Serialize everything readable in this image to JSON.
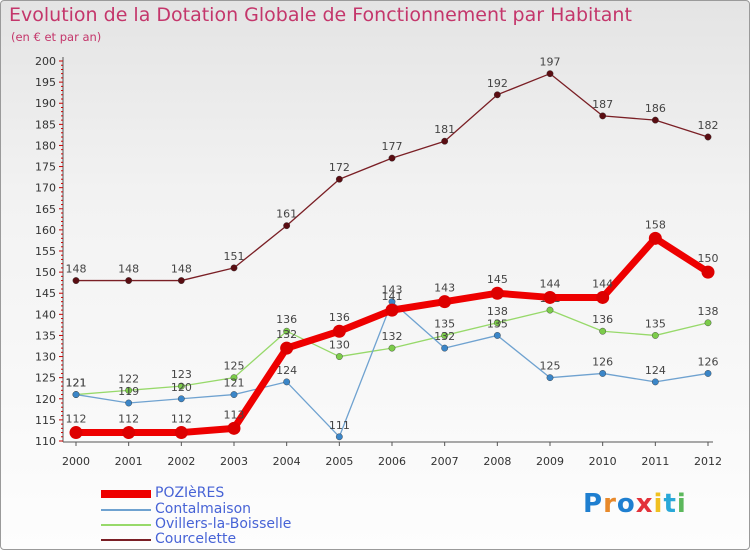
{
  "chart_data": {
    "type": "line",
    "title": "Evolution de la Dotation Globale de Fonctionnement par Habitant",
    "subtitle": "(en € et par an)",
    "xlabel": "",
    "ylabel": "",
    "x": [
      "2000",
      "2001",
      "2002",
      "2003",
      "2004",
      "2005",
      "2006",
      "2007",
      "2008",
      "2009",
      "2010",
      "2011",
      "2012"
    ],
    "ylim": [
      110,
      200
    ],
    "yticks": [
      110,
      115,
      120,
      125,
      130,
      135,
      140,
      145,
      150,
      155,
      160,
      165,
      170,
      175,
      180,
      185,
      190,
      195,
      200
    ],
    "grid": false,
    "legend_position": "bottom-left",
    "series": [
      {
        "name": "Courcelette",
        "color": "#7a1f25",
        "marker": "#5a0d12",
        "values": [
          148,
          148,
          148,
          151,
          161,
          172,
          177,
          181,
          192,
          197,
          187,
          186,
          182
        ]
      },
      {
        "name": "Ovillers-la-Boisselle",
        "color": "#97d96a",
        "marker": "#7ccc4a",
        "values": [
          121,
          122,
          123,
          125,
          136,
          130,
          132,
          135,
          138,
          141,
          136,
          135,
          138
        ]
      },
      {
        "name": "Contalmaison",
        "color": "#6fa2d0",
        "marker": "#3b86c8",
        "values": [
          121,
          119,
          120,
          121,
          124,
          111,
          143,
          132,
          135,
          125,
          126,
          124,
          126
        ]
      },
      {
        "name": "POZIèRES",
        "color": "#ee0000",
        "marker": "#dd0000",
        "values": [
          112,
          112,
          112,
          113,
          132,
          136,
          141,
          143,
          145,
          144,
          144,
          158,
          150
        ]
      }
    ],
    "legend": [
      "POZIèRES",
      "Contalmaison",
      "Ovillers-la-Boisselle",
      "Courcelette"
    ]
  },
  "legend_items": [
    {
      "label": "POZIèRES",
      "color": "#ee0000"
    },
    {
      "label": "Contalmaison",
      "color": "#6fa2d0"
    },
    {
      "label": "Ovillers-la-Boisselle",
      "color": "#97d96a"
    },
    {
      "label": "Courcelette",
      "color": "#7a1f25"
    }
  ],
  "logo": {
    "text": "Proxiti",
    "letters": [
      "P",
      "r",
      "o",
      "x",
      "i",
      "t",
      "i"
    ],
    "colors": [
      "#1f7fd0",
      "#e8892a",
      "#1f7fd0",
      "#e3323a",
      "#f0c020",
      "#29a8d8",
      "#5cb85c"
    ]
  }
}
